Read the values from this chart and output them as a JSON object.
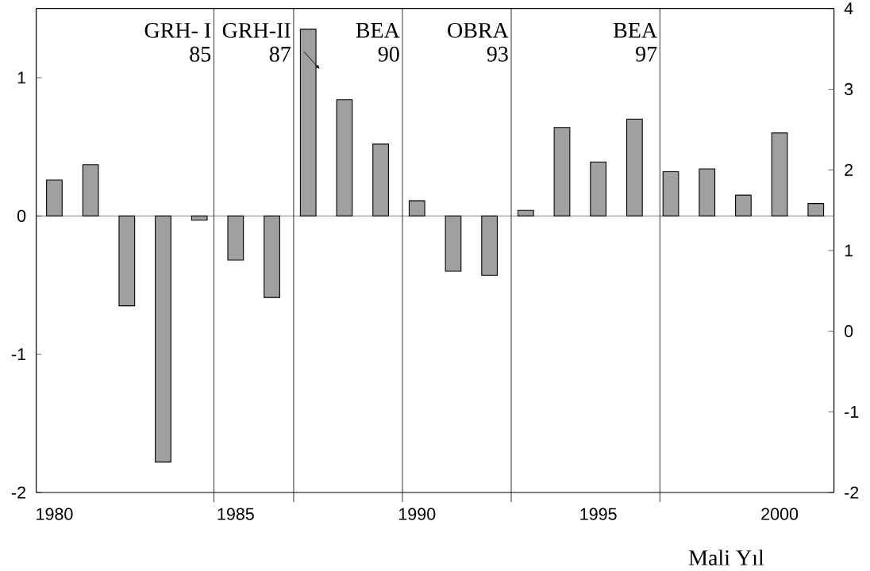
{
  "chart_data": {
    "type": "bar",
    "xlabel": "Mali Yıl",
    "x": [
      1980,
      1981,
      1982,
      1983,
      1984,
      1985,
      1986,
      1987,
      1988,
      1989,
      1990,
      1991,
      1992,
      1993,
      1994,
      1995,
      1996,
      1997,
      1998,
      1999,
      2000,
      2001
    ],
    "values": [
      0.26,
      0.37,
      -0.65,
      -1.78,
      -0.03,
      -0.32,
      -0.59,
      1.35,
      0.84,
      0.52,
      0.11,
      -0.4,
      -0.43,
      0.04,
      0.64,
      0.39,
      0.7,
      0.32,
      0.34,
      0.15,
      0.6,
      0.09
    ],
    "color": "#a0a0a0",
    "xlim": [
      1979.5,
      2001.5
    ],
    "xticks": [
      1980,
      1985,
      1990,
      1995,
      2000
    ],
    "ylim": [
      -2,
      1.5
    ],
    "yticks": [
      -2,
      -1,
      0,
      1
    ],
    "y2lim": [
      -2,
      4
    ],
    "y2ticks": [
      -2,
      -1,
      0,
      1,
      2,
      3,
      4
    ],
    "ref_lines": [
      {
        "axis": "x",
        "value": 1984.4,
        "label": "GRH- I"
      },
      {
        "axis": "x",
        "value": 1986.6,
        "label": "GRH-II"
      },
      {
        "axis": "x",
        "value": 1989.6,
        "label": "BEA"
      },
      {
        "axis": "x",
        "value": 1992.6,
        "label": "OBRA"
      },
      {
        "axis": "x",
        "value": 1996.7,
        "label": "BEA"
      }
    ],
    "annotations": [
      {
        "text": "85",
        "x": 1984.4,
        "y": 1.17
      },
      {
        "text": "87",
        "x": 1986.6,
        "y": 1.17
      },
      {
        "text": "90",
        "x": 1989.6,
        "y": 1.17
      },
      {
        "text": "93",
        "x": 1992.6,
        "y": 1.17
      },
      {
        "text": "97",
        "x": 1996.7,
        "y": 1.17
      }
    ]
  }
}
